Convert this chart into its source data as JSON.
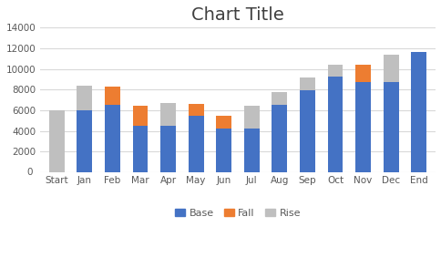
{
  "title": "Chart Title",
  "categories": [
    "Start",
    "Jan",
    "Feb",
    "Mar",
    "Apr",
    "May",
    "Jun",
    "Jul",
    "Aug",
    "Sep",
    "Oct",
    "Nov",
    "Dec",
    "End"
  ],
  "base": [
    0,
    6000,
    6500,
    4500,
    4500,
    5500,
    4200,
    4200,
    6500,
    7900,
    9300,
    8700,
    8700,
    11600
  ],
  "fall": [
    0,
    0,
    1800,
    1900,
    0,
    1100,
    1300,
    0,
    0,
    0,
    0,
    1700,
    0,
    0
  ],
  "rise": [
    6000,
    2400,
    0,
    0,
    2200,
    0,
    0,
    2200,
    1300,
    1300,
    1100,
    0,
    2700,
    0
  ],
  "color_base": "#4472C4",
  "color_fall": "#ED7D31",
  "color_rise": "#BFBFBF",
  "ylim": [
    0,
    14000
  ],
  "yticks": [
    0,
    2000,
    4000,
    6000,
    8000,
    10000,
    12000,
    14000
  ],
  "fig_bg": "#FFFFFF",
  "plot_bg": "#FFFFFF",
  "grid_color": "#D9D9D9",
  "title_fontsize": 14,
  "tick_fontsize": 7.5,
  "legend_labels": [
    "Base",
    "Fall",
    "Rise"
  ],
  "title_color": "#404040",
  "tick_color": "#595959"
}
